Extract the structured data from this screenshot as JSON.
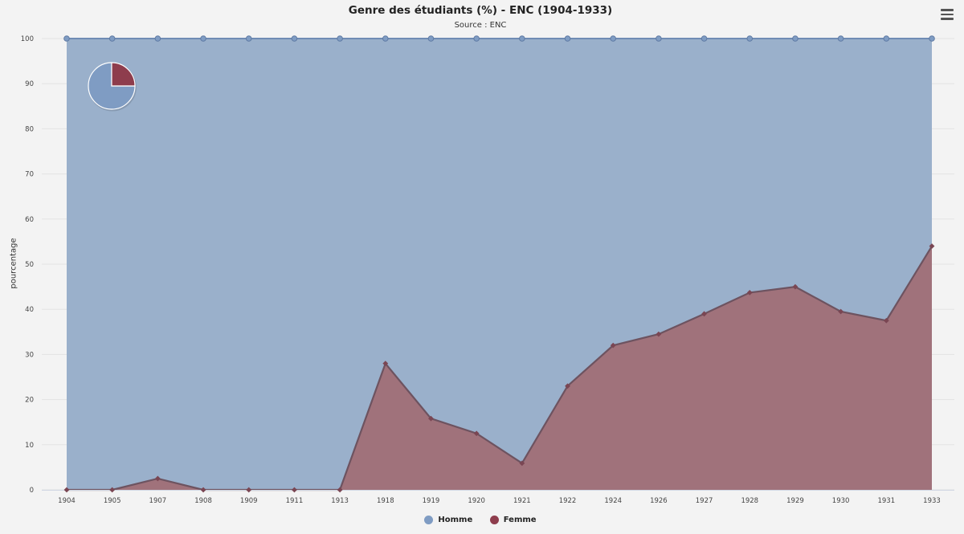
{
  "chart_data": {
    "type": "area",
    "stacking": "percent",
    "title": "Genre des étudiants (%) - ENC (1904-1933)",
    "subtitle": "Source : ENC",
    "xlabel": "",
    "ylabel": "pourcentage",
    "ylim": [
      0,
      100
    ],
    "yticks": [
      "0",
      "10",
      "20",
      "30",
      "40",
      "50",
      "60",
      "70",
      "80",
      "90",
      "100"
    ],
    "categories": [
      "1904",
      "1905",
      "1907",
      "1908",
      "1909",
      "1911",
      "1913",
      "1918",
      "1919",
      "1920",
      "1921",
      "1922",
      "1924",
      "1926",
      "1927",
      "1928",
      "1929",
      "1930",
      "1931",
      "1933"
    ],
    "grid": true,
    "legend_position": "bottom-center",
    "series": [
      {
        "name": "Homme",
        "color": "#7f9cc3",
        "marker": "circle",
        "values": [
          100,
          100,
          97.5,
          100,
          100,
          100,
          100,
          72,
          84.2,
          87.5,
          94.1,
          77,
          68,
          65.5,
          61,
          56.3,
          55,
          60.5,
          62.5,
          46
        ]
      },
      {
        "name": "Femme",
        "color": "#8e3d4d",
        "marker": "diamond",
        "values": [
          0,
          0,
          2.5,
          0,
          0,
          0,
          0,
          28,
          15.8,
          12.5,
          5.9,
          23,
          32,
          34.5,
          39,
          43.7,
          45,
          39.5,
          37.5,
          54
        ]
      }
    ],
    "inset_pie": {
      "values": [
        75,
        25
      ],
      "colors": [
        "#7f9cc3",
        "#8e3d4d"
      ]
    }
  },
  "menu_icon": "hamburger-menu-icon"
}
